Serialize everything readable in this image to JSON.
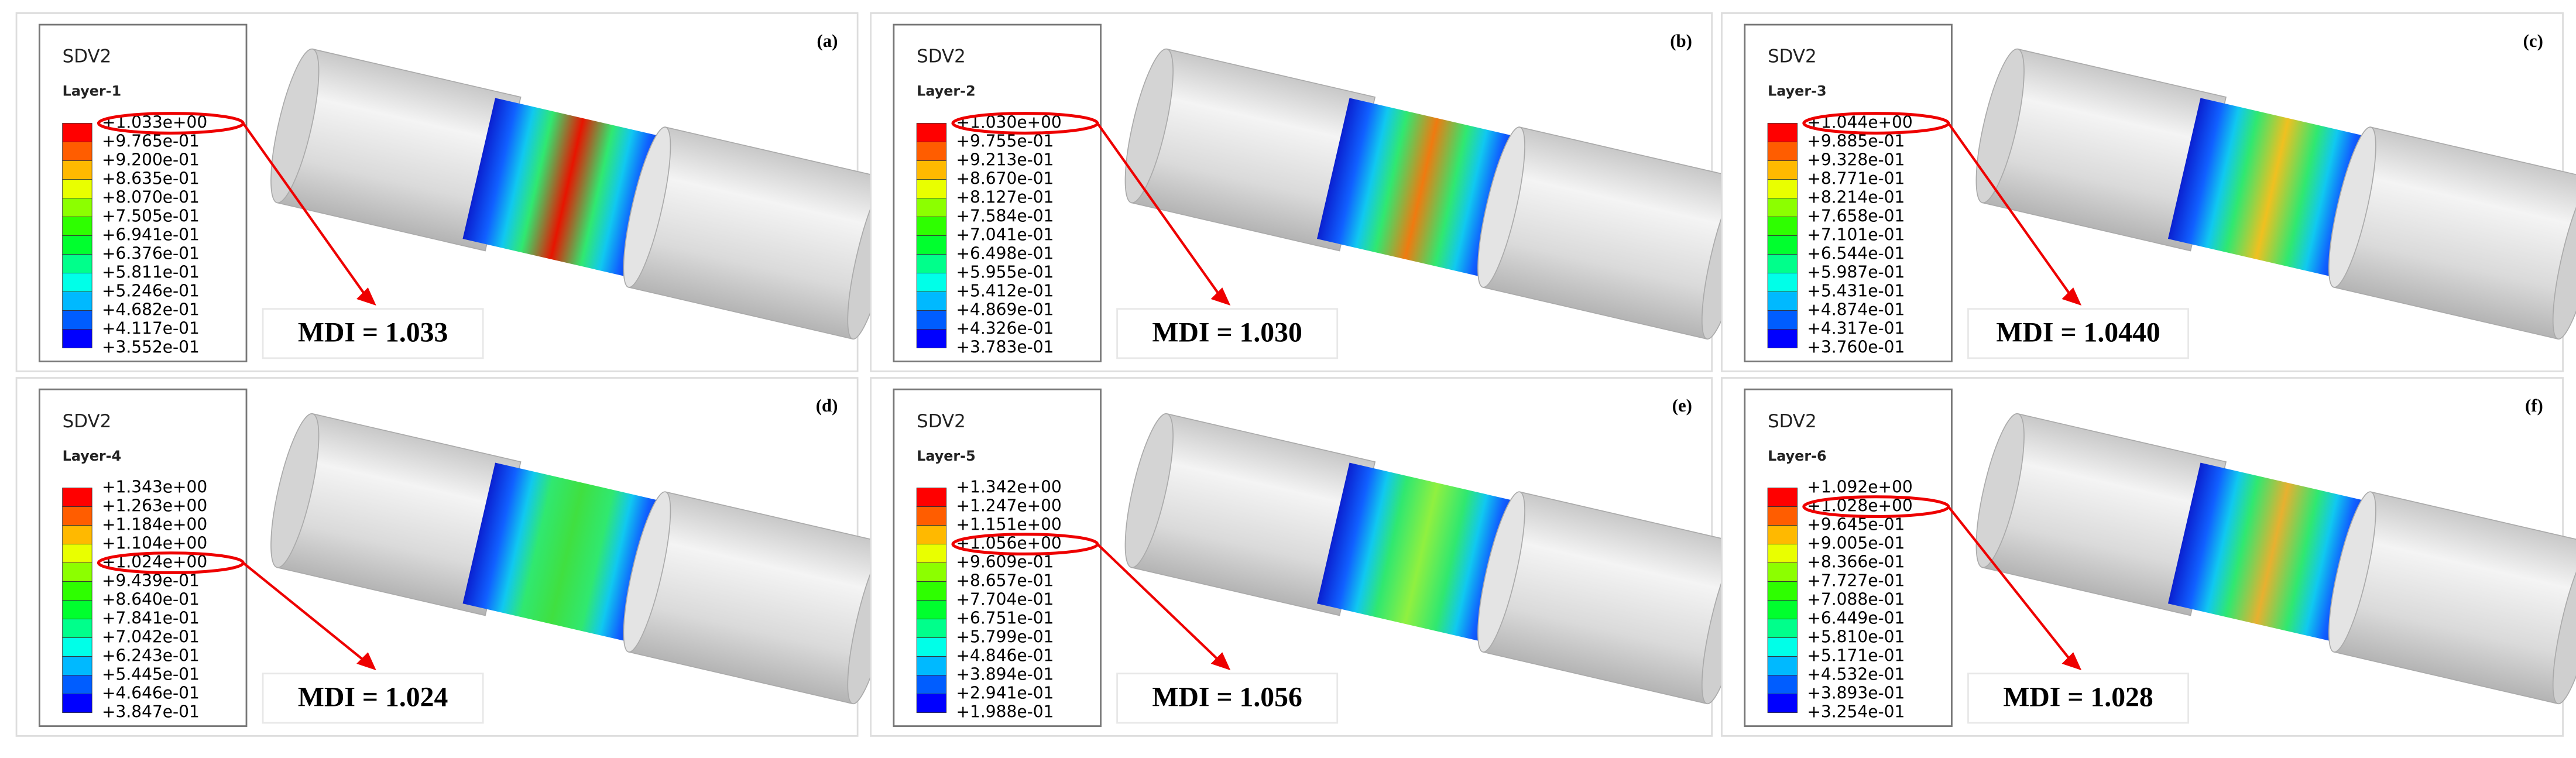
{
  "panels": [
    {
      "label": "(a)",
      "variable": "SDV2",
      "layer": "Layer-1",
      "legend": [
        "+1.033e+00",
        "+9.765e-01",
        "+9.200e-01",
        "+8.635e-01",
        "+8.070e-01",
        "+7.505e-01",
        "+6.941e-01",
        "+6.376e-01",
        "+5.811e-01",
        "+5.246e-01",
        "+4.682e-01",
        "+4.117e-01",
        "+3.552e-01"
      ],
      "mdi": "MDI = 1.033"
    },
    {
      "label": "(b)",
      "variable": "SDV2",
      "layer": "Layer-2",
      "legend": [
        "+1.030e+00",
        "+9.755e-01",
        "+9.213e-01",
        "+8.670e-01",
        "+8.127e-01",
        "+7.584e-01",
        "+7.041e-01",
        "+6.498e-01",
        "+5.955e-01",
        "+5.412e-01",
        "+4.869e-01",
        "+4.326e-01",
        "+3.783e-01"
      ],
      "mdi": "MDI = 1.030"
    },
    {
      "label": "(c)",
      "variable": "SDV2",
      "layer": "Layer-3",
      "legend": [
        "+1.044e+00",
        "+9.885e-01",
        "+9.328e-01",
        "+8.771e-01",
        "+8.214e-01",
        "+7.658e-01",
        "+7.101e-01",
        "+6.544e-01",
        "+5.987e-01",
        "+5.431e-01",
        "+4.874e-01",
        "+4.317e-01",
        "+3.760e-01"
      ],
      "mdi": "MDI = 1.0440"
    },
    {
      "label": "(d)",
      "variable": "SDV2",
      "layer": "Layer-4",
      "legend": [
        "+1.343e+00",
        "+1.263e+00",
        "+1.184e+00",
        "+1.104e+00",
        "+1.024e+00",
        "+9.439e-01",
        "+8.640e-01",
        "+7.841e-01",
        "+7.042e-01",
        "+6.243e-01",
        "+5.445e-01",
        "+4.646e-01",
        "+3.847e-01"
      ],
      "mdi": "MDI = 1.024"
    },
    {
      "label": "(e)",
      "variable": "SDV2",
      "layer": "Layer-5",
      "legend": [
        "+1.342e+00",
        "+1.247e+00",
        "+1.151e+00",
        "+1.056e+00",
        "+9.609e-01",
        "+8.657e-01",
        "+7.704e-01",
        "+6.751e-01",
        "+5.799e-01",
        "+4.846e-01",
        "+3.894e-01",
        "+2.941e-01",
        "+1.988e-01"
      ],
      "mdi": "MDI = 1.056"
    },
    {
      "label": "(f)",
      "variable": "SDV2",
      "layer": "Layer-6",
      "legend": [
        "+1.092e+00",
        "+1.028e+00",
        "+9.645e-01",
        "+9.005e-01",
        "+8.366e-01",
        "+7.727e-01",
        "+7.088e-01",
        "+6.449e-01",
        "+5.810e-01",
        "+5.171e-01",
        "+4.532e-01",
        "+3.893e-01",
        "+3.254e-01"
      ],
      "mdi": "MDI = 1.028"
    }
  ]
}
